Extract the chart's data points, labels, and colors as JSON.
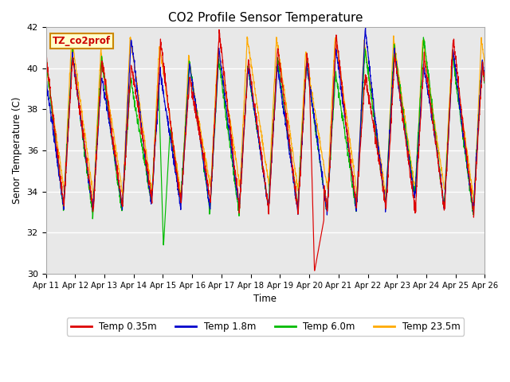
{
  "title": "CO2 Profile Sensor Temperature",
  "ylabel": "Senor Temperature (C)",
  "xlabel": "Time",
  "ylim": [
    30,
    42
  ],
  "xlim_days": [
    0,
    15
  ],
  "label_text": "TZ_co2prof",
  "background_color": "#e8e8e8",
  "fig_color": "#ffffff",
  "series": [
    {
      "label": "Temp 0.35m",
      "color": "#dd0000"
    },
    {
      "label": "Temp 1.8m",
      "color": "#0000cc"
    },
    {
      "label": "Temp 6.0m",
      "color": "#00bb00"
    },
    {
      "label": "Temp 23.5m",
      "color": "#ffaa00"
    }
  ],
  "xtick_labels": [
    "Apr 11",
    "Apr 12",
    "Apr 13",
    "Apr 14",
    "Apr 15",
    "Apr 16",
    "Apr 17",
    "Apr 18",
    "Apr 19",
    "Apr 20",
    "Apr 21",
    "Apr 22",
    "Apr 23",
    "Apr 24",
    "Apr 25",
    "Apr 26"
  ],
  "xtick_positions": [
    0,
    1,
    2,
    3,
    4,
    5,
    6,
    7,
    8,
    9,
    10,
    11,
    12,
    13,
    14,
    15
  ],
  "ytick_labels": [
    "30",
    "32",
    "34",
    "36",
    "38",
    "40",
    "42"
  ],
  "ytick_positions": [
    30,
    32,
    34,
    36,
    38,
    40,
    42
  ],
  "grid_color": "#ffffff"
}
